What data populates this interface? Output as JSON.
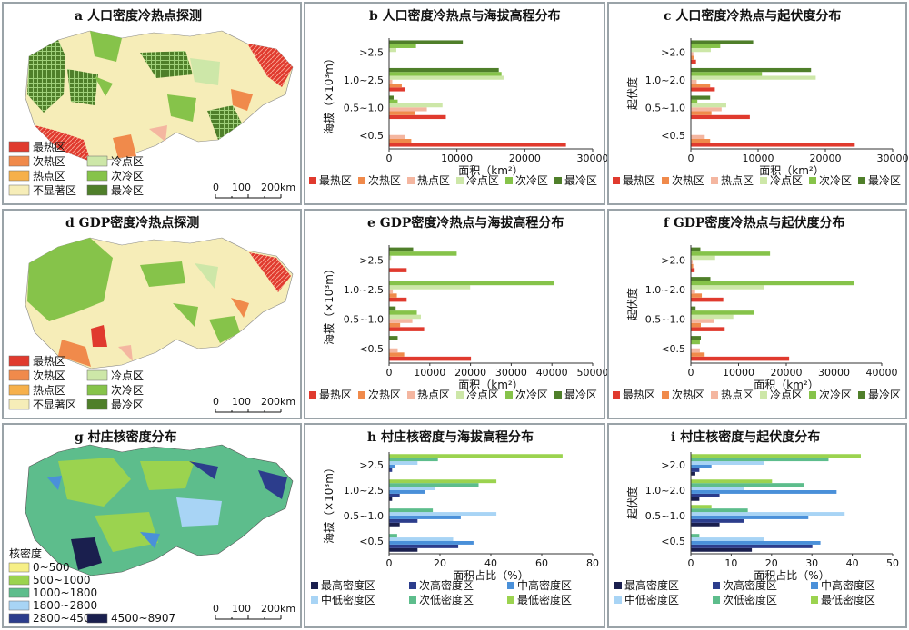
{
  "colors": {
    "hot1": "#e03a2e",
    "hot2": "#f08a4b",
    "hot3": "#f4b6a0",
    "cold3": "#cde7a8",
    "cold2": "#86c34a",
    "cold1": "#4f7f2a",
    "vd_high": "#1a1f4e",
    "vd_sub": "#2c3d8c",
    "vd_mid": "#4a90d9",
    "vd_midlow": "#a8d4f5",
    "vd_sublow": "#5dbd8c",
    "vd_low": "#9bd34f",
    "map_bg": "#f6edb8",
    "panel_border": "#9aa3a8"
  },
  "panels": {
    "a": {
      "title": "a 人口密度冷热点探测",
      "legend": [
        "最热区",
        "次热区",
        "热点区",
        "冷点区",
        "次冷区",
        "最冷区",
        "不显著区"
      ],
      "scale": {
        "labels": [
          "0",
          "100",
          "200km"
        ]
      }
    },
    "d": {
      "title": "d GDP密度冷热点探测",
      "legend": [
        "最热区",
        "次热区",
        "热点区",
        "冷点区",
        "次冷区",
        "最冷区",
        "不显著区"
      ],
      "scale": {
        "labels": [
          "0",
          "100",
          "200km"
        ]
      }
    },
    "g": {
      "title": "g 村庄核密度分布",
      "legend_title": "核密度",
      "legend": [
        "0~500",
        "500~1000",
        "1000~1800",
        "1800~2800",
        "2800~4500",
        "4500~8907"
      ],
      "scale": {
        "labels": [
          "0",
          "100",
          "200km"
        ]
      }
    }
  },
  "chart_data": [
    {
      "id": "b",
      "type": "bar",
      "orientation": "horizontal",
      "title": "b 人口密度冷热点与海拔高程分布",
      "xlabel": "面积（km²）",
      "ylabel": "海拔（×10³m）",
      "categories": [
        "<0.5",
        "0.5~1.0",
        "1.0~2.5",
        ">2.5"
      ],
      "xlim": [
        0,
        30000
      ],
      "xticks": [
        "0",
        "10000",
        "20000",
        "30000"
      ],
      "series": [
        {
          "name": "最热区",
          "color": "#e03a2e",
          "values": [
            26000,
            8300,
            2300,
            0
          ]
        },
        {
          "name": "次热区",
          "color": "#f08a4b",
          "values": [
            3200,
            3800,
            1800,
            0
          ]
        },
        {
          "name": "热点区",
          "color": "#f4b6a0",
          "values": [
            2300,
            5500,
            400,
            0
          ]
        },
        {
          "name": "冷点区",
          "color": "#cde7a8",
          "values": [
            0,
            7800,
            16800,
            1000
          ]
        },
        {
          "name": "次冷区",
          "color": "#86c34a",
          "values": [
            0,
            1200,
            16500,
            3900
          ]
        },
        {
          "name": "最冷区",
          "color": "#4f7f2a",
          "values": [
            0,
            600,
            16100,
            10800
          ]
        }
      ]
    },
    {
      "id": "c",
      "type": "bar",
      "orientation": "horizontal",
      "title": "c 人口密度冷热点与起伏度分布",
      "xlabel": "面积（km²）",
      "ylabel": "起伏度",
      "categories": [
        "<0.5",
        "0.5~1.0",
        "1.0~2.0",
        ">2.0"
      ],
      "xlim": [
        0,
        30000
      ],
      "xticks": [
        "0",
        "10000",
        "20000",
        "30000"
      ],
      "series": [
        {
          "name": "最热区",
          "color": "#e03a2e",
          "values": [
            24300,
            8700,
            3500,
            700
          ]
        },
        {
          "name": "次热区",
          "color": "#f08a4b",
          "values": [
            2800,
            3000,
            2800,
            400
          ]
        },
        {
          "name": "热点区",
          "color": "#f4b6a0",
          "values": [
            2000,
            4500,
            800,
            300
          ]
        },
        {
          "name": "冷点区",
          "color": "#cde7a8",
          "values": [
            0,
            5200,
            18500,
            2900
          ]
        },
        {
          "name": "次冷区",
          "color": "#86c34a",
          "values": [
            0,
            900,
            10500,
            4300
          ]
        },
        {
          "name": "最冷区",
          "color": "#4f7f2a",
          "values": [
            0,
            2800,
            17800,
            9200
          ]
        }
      ]
    },
    {
      "id": "e",
      "type": "bar",
      "orientation": "horizontal",
      "title": "e GDP密度冷热点与海拔高程分布",
      "xlabel": "面积（km²）",
      "ylabel": "海拔（×10³m）",
      "categories": [
        "<0.5",
        "0.5~1.0",
        "1.0~2.5",
        ">2.5"
      ],
      "xlim": [
        0,
        50000
      ],
      "xticks": [
        "0",
        "10000",
        "20000",
        "30000",
        "40000",
        "50000"
      ],
      "series": [
        {
          "name": "最热区",
          "color": "#e03a2e",
          "values": [
            20000,
            8500,
            4200,
            4200
          ]
        },
        {
          "name": "次热区",
          "color": "#f08a4b",
          "values": [
            3600,
            2600,
            1800,
            0
          ]
        },
        {
          "name": "热点区",
          "color": "#f4b6a0",
          "values": [
            2000,
            5600,
            800,
            0
          ]
        },
        {
          "name": "冷点区",
          "color": "#cde7a8",
          "values": [
            0,
            7700,
            19800,
            400
          ]
        },
        {
          "name": "次冷区",
          "color": "#86c34a",
          "values": [
            0,
            6700,
            40300,
            16500
          ]
        },
        {
          "name": "最冷区",
          "color": "#4f7f2a",
          "values": [
            2000,
            1500,
            0,
            5800
          ]
        }
      ]
    },
    {
      "id": "f",
      "type": "bar",
      "orientation": "horizontal",
      "title": "f GDP密度冷热点与起伏度分布",
      "xlabel": "面积（km²）",
      "ylabel": "起伏度",
      "categories": [
        "<0.5",
        "0.5~1.0",
        "1.0~2.0",
        ">2.0"
      ],
      "xlim": [
        0,
        40000
      ],
      "xticks": [
        "0",
        "10000",
        "20000",
        "30000",
        "40000"
      ],
      "series": [
        {
          "name": "最热区",
          "color": "#e03a2e",
          "values": [
            20500,
            7000,
            6700,
            700
          ]
        },
        {
          "name": "次热区",
          "color": "#f08a4b",
          "values": [
            2800,
            2000,
            2200,
            400
          ]
        },
        {
          "name": "热点区",
          "color": "#f4b6a0",
          "values": [
            1800,
            4700,
            800,
            300
          ]
        },
        {
          "name": "冷点区",
          "color": "#cde7a8",
          "values": [
            0,
            8800,
            15300,
            5000
          ]
        },
        {
          "name": "次冷区",
          "color": "#86c34a",
          "values": [
            1800,
            13100,
            34000,
            16500
          ]
        },
        {
          "name": "最冷区",
          "color": "#4f7f2a",
          "values": [
            2000,
            900,
            4000,
            1900
          ]
        }
      ]
    },
    {
      "id": "h",
      "type": "bar",
      "orientation": "horizontal",
      "title": "h 村庄核密度与海拔高程分布",
      "xlabel": "面积占比（%）",
      "ylabel": "海拔（×10³m）",
      "categories": [
        "<0.5",
        "0.5~1.0",
        "1.0~2.5",
        ">2.5"
      ],
      "xlim": [
        0,
        80
      ],
      "xticks": [
        "0",
        "20",
        "40",
        "60",
        "80"
      ],
      "series": [
        {
          "name": "最高密度区",
          "color": "#1a1f4e",
          "values": [
            11,
            4,
            1,
            0
          ]
        },
        {
          "name": "次高密度区",
          "color": "#2c3d8c",
          "values": [
            27,
            11,
            4,
            1
          ]
        },
        {
          "name": "中高密度区",
          "color": "#4a90d9",
          "values": [
            33,
            28,
            14,
            2
          ]
        },
        {
          "name": "中低密度区",
          "color": "#a8d4f5",
          "values": [
            25,
            42,
            18,
            11
          ]
        },
        {
          "name": "次低密度区",
          "color": "#5dbd8c",
          "values": [
            3,
            17,
            35,
            19
          ]
        },
        {
          "name": "最低密度区",
          "color": "#9bd34f",
          "values": [
            0,
            0,
            42,
            68
          ]
        }
      ]
    },
    {
      "id": "i",
      "type": "bar",
      "orientation": "horizontal",
      "title": "i 村庄核密度与起伏度分布",
      "xlabel": "面积占比（%）",
      "ylabel": "起伏度",
      "categories": [
        "<0.5",
        "0.5~1.0",
        "1.0~2.0",
        ">2.0"
      ],
      "xlim": [
        0,
        50
      ],
      "xticks": [
        "0",
        "10",
        "20",
        "30",
        "40",
        "50"
      ],
      "series": [
        {
          "name": "最高密度区",
          "color": "#1a1f4e",
          "values": [
            15,
            7,
            2,
            1
          ]
        },
        {
          "name": "次高密度区",
          "color": "#2c3d8c",
          "values": [
            30,
            13,
            7,
            2
          ]
        },
        {
          "name": "中高密度区",
          "color": "#4a90d9",
          "values": [
            32,
            29,
            36,
            5
          ]
        },
        {
          "name": "中低密度区",
          "color": "#a8d4f5",
          "values": [
            18,
            38,
            13,
            18
          ]
        },
        {
          "name": "次低密度区",
          "color": "#5dbd8c",
          "values": [
            2,
            14,
            28,
            34
          ]
        },
        {
          "name": "最低密度区",
          "color": "#9bd34f",
          "values": [
            0,
            5,
            20,
            42
          ]
        }
      ]
    }
  ]
}
